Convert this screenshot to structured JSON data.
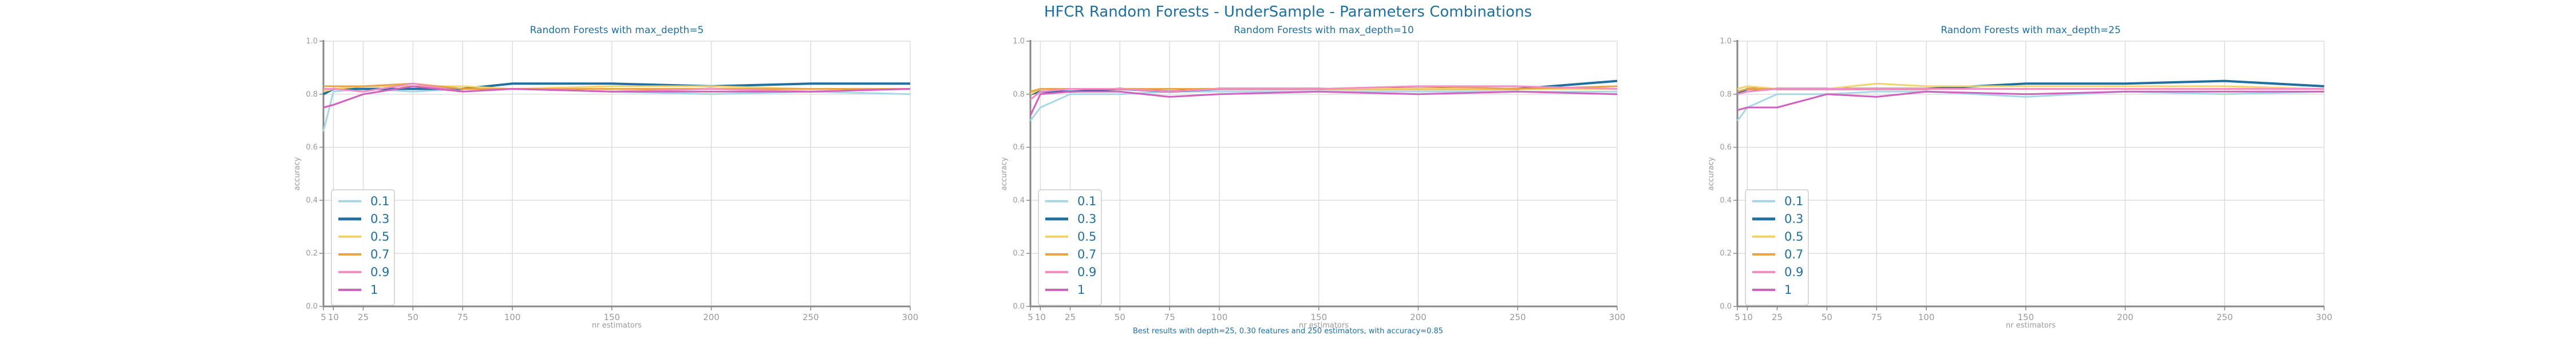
{
  "suptitle": "HFCR Random Forests - UnderSample - Parameters Combinations",
  "footnote": "Best results with depth=25, 0.30 features and 250 estimators, with accuracy=0.85",
  "colors": {
    "0.1": "#a8d8e8",
    "0.3": "#1f6f9f",
    "0.5": "#f5d36a",
    "0.7": "#e8a44a",
    "0.9": "#f28ec4",
    "1": "#d35fbf",
    "text": "#1f6f9f",
    "axis_text": "#999999",
    "grid": "#dddddd"
  },
  "chart_data": [
    {
      "type": "line",
      "title": "Random Forests with max_depth=5",
      "xlabel": "nr estimators",
      "ylabel": "accuracy",
      "x": [
        5,
        10,
        25,
        50,
        75,
        100,
        150,
        200,
        250,
        300
      ],
      "xticks": [
        "5",
        "10",
        "25",
        "50",
        "75",
        "100",
        "150",
        "200",
        "250",
        "300"
      ],
      "yticks": [
        "0.0",
        "0.2",
        "0.4",
        "0.6",
        "0.8",
        "1.0"
      ],
      "ylim": [
        0,
        1
      ],
      "grid": true,
      "legend_position": "lower-left",
      "series": [
        {
          "name": "0.1",
          "values": [
            0.66,
            0.81,
            0.82,
            0.81,
            0.82,
            0.82,
            0.81,
            0.8,
            0.81,
            0.8
          ]
        },
        {
          "name": "0.3",
          "values": [
            0.8,
            0.82,
            0.82,
            0.82,
            0.82,
            0.84,
            0.84,
            0.83,
            0.84,
            0.84
          ]
        },
        {
          "name": "0.5",
          "values": [
            0.81,
            0.82,
            0.83,
            0.83,
            0.83,
            0.82,
            0.83,
            0.83,
            0.82,
            0.82
          ]
        },
        {
          "name": "0.7",
          "values": [
            0.83,
            0.83,
            0.83,
            0.84,
            0.82,
            0.82,
            0.82,
            0.82,
            0.82,
            0.82
          ]
        },
        {
          "name": "0.9",
          "values": [
            0.82,
            0.82,
            0.81,
            0.84,
            0.81,
            0.82,
            0.81,
            0.82,
            0.81,
            0.82
          ]
        },
        {
          "name": "1",
          "values": [
            0.75,
            0.76,
            0.8,
            0.83,
            0.81,
            0.82,
            0.81,
            0.81,
            0.81,
            0.82
          ]
        }
      ]
    },
    {
      "type": "line",
      "title": "Random Forests with max_depth=10",
      "xlabel": "nr estimators",
      "ylabel": "accuracy",
      "x": [
        5,
        10,
        25,
        50,
        75,
        100,
        150,
        200,
        250,
        300
      ],
      "xticks": [
        "5",
        "10",
        "25",
        "50",
        "75",
        "100",
        "150",
        "200",
        "250",
        "300"
      ],
      "yticks": [
        "0.0",
        "0.2",
        "0.4",
        "0.6",
        "0.8",
        "1.0"
      ],
      "ylim": [
        0,
        1
      ],
      "grid": true,
      "legend_position": "lower-left",
      "series": [
        {
          "name": "0.1",
          "values": [
            0.7,
            0.75,
            0.8,
            0.8,
            0.81,
            0.81,
            0.81,
            0.81,
            0.81,
            0.81
          ]
        },
        {
          "name": "0.3",
          "values": [
            0.8,
            0.81,
            0.81,
            0.82,
            0.81,
            0.82,
            0.82,
            0.82,
            0.82,
            0.85
          ]
        },
        {
          "name": "0.5",
          "values": [
            0.8,
            0.82,
            0.82,
            0.82,
            0.82,
            0.82,
            0.82,
            0.82,
            0.82,
            0.82
          ]
        },
        {
          "name": "0.7",
          "values": [
            0.81,
            0.82,
            0.82,
            0.82,
            0.82,
            0.82,
            0.82,
            0.83,
            0.82,
            0.83
          ]
        },
        {
          "name": "0.9",
          "values": [
            0.78,
            0.81,
            0.82,
            0.82,
            0.81,
            0.82,
            0.82,
            0.83,
            0.83,
            0.82
          ]
        },
        {
          "name": "1",
          "values": [
            0.72,
            0.8,
            0.81,
            0.81,
            0.79,
            0.8,
            0.81,
            0.8,
            0.81,
            0.8
          ]
        }
      ]
    },
    {
      "type": "line",
      "title": "Random Forests with max_depth=25",
      "xlabel": "nr estimators",
      "ylabel": "accuracy",
      "x": [
        5,
        10,
        25,
        50,
        75,
        100,
        150,
        200,
        250,
        300
      ],
      "xticks": [
        "5",
        "10",
        "25",
        "50",
        "75",
        "100",
        "150",
        "200",
        "250",
        "300"
      ],
      "yticks": [
        "0.0",
        "0.2",
        "0.4",
        "0.6",
        "0.8",
        "1.0"
      ],
      "ylim": [
        0,
        1
      ],
      "grid": true,
      "legend_position": "lower-left",
      "series": [
        {
          "name": "0.1",
          "values": [
            0.7,
            0.75,
            0.8,
            0.8,
            0.81,
            0.81,
            0.79,
            0.81,
            0.8,
            0.81
          ]
        },
        {
          "name": "0.3",
          "values": [
            0.8,
            0.82,
            0.82,
            0.82,
            0.82,
            0.82,
            0.84,
            0.84,
            0.85,
            0.83
          ]
        },
        {
          "name": "0.5",
          "values": [
            0.82,
            0.83,
            0.82,
            0.82,
            0.84,
            0.83,
            0.83,
            0.83,
            0.83,
            0.82
          ]
        },
        {
          "name": "0.7",
          "values": [
            0.81,
            0.82,
            0.82,
            0.82,
            0.82,
            0.82,
            0.82,
            0.82,
            0.82,
            0.82
          ]
        },
        {
          "name": "0.9",
          "values": [
            0.8,
            0.81,
            0.82,
            0.82,
            0.82,
            0.82,
            0.82,
            0.82,
            0.82,
            0.82
          ]
        },
        {
          "name": "1",
          "values": [
            0.74,
            0.75,
            0.75,
            0.8,
            0.79,
            0.81,
            0.8,
            0.81,
            0.81,
            0.81
          ]
        }
      ]
    }
  ]
}
